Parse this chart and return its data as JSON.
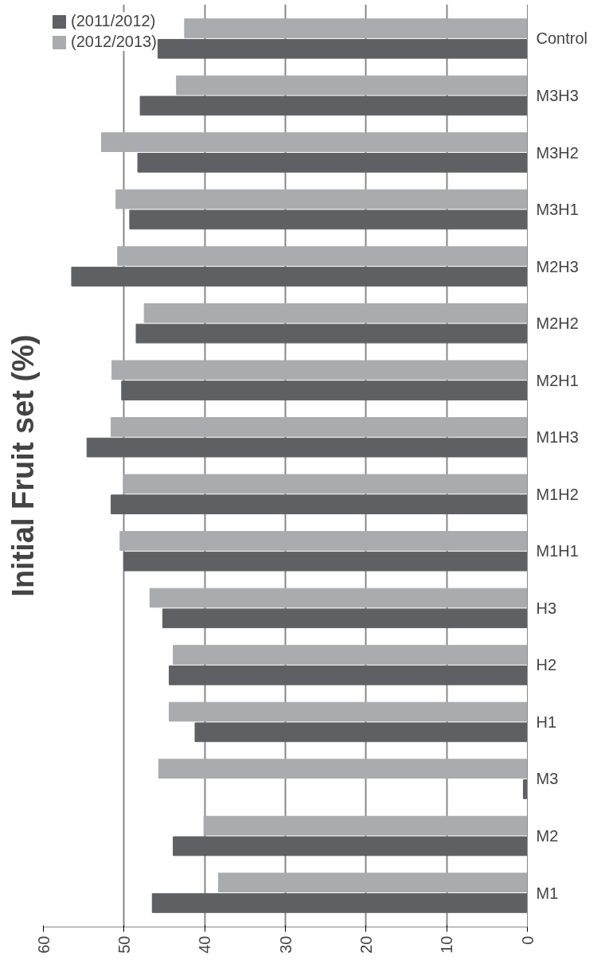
{
  "chart_data": {
    "type": "bar",
    "orientation": "horizontal",
    "title": "Initial Fruit set (%)",
    "categories": [
      "Control",
      "M3H3",
      "M3H2",
      "M3H1",
      "M2H3",
      "M2H2",
      "M2H1",
      "M1H3",
      "M1H2",
      "M1H1",
      "H3",
      "H2",
      "H1",
      "M3",
      "M2",
      "M1"
    ],
    "series": [
      {
        "name": "(2011/2012)",
        "color": "#5f6064",
        "values": [
          45.8,
          48,
          48.3,
          49.3,
          56.5,
          48.5,
          50.3,
          54.6,
          51.6,
          50,
          45.2,
          44.4,
          41.2,
          0.5,
          43.9,
          46.5
        ]
      },
      {
        "name": "(2012/2013)",
        "color": "#a9abae",
        "values": [
          42.5,
          43.5,
          52.8,
          51,
          50.8,
          47.5,
          51.5,
          51.6,
          50,
          50.5,
          46.8,
          43.9,
          44.4,
          45.7,
          40.1,
          38.3
        ]
      }
    ],
    "xlim": [
      60,
      0
    ],
    "xticks": [
      0,
      10,
      20,
      30,
      40,
      50,
      60
    ],
    "grid": "x",
    "legend": "top left"
  }
}
